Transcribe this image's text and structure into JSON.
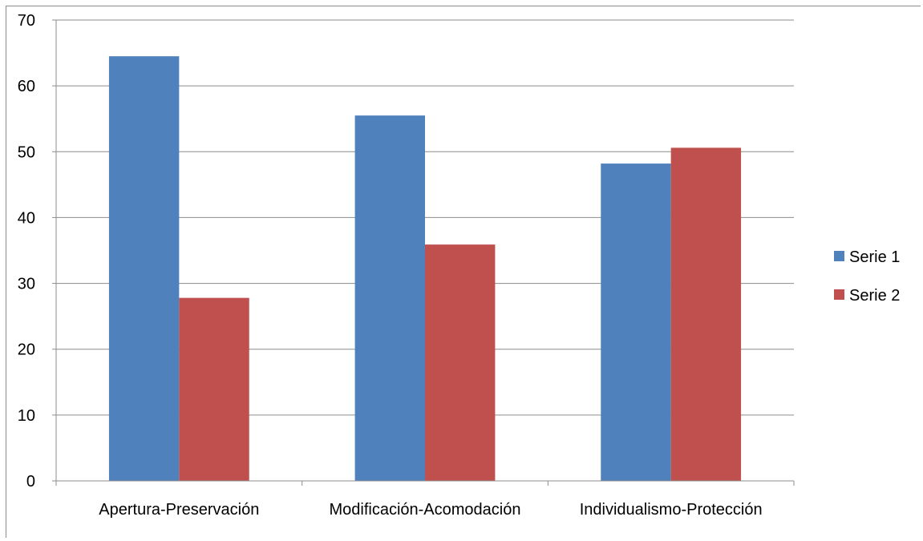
{
  "chart_data": {
    "type": "bar",
    "categories": [
      "Apertura-Preservación",
      "Modificación-Acomodación",
      "Individualismo-Protección"
    ],
    "series": [
      {
        "name": "Serie 1",
        "color": "#4f81bd",
        "values": [
          64.5,
          55.5,
          48.2
        ]
      },
      {
        "name": "Serie 2",
        "color": "#c0504d",
        "values": [
          27.8,
          35.9,
          50.6
        ]
      }
    ],
    "title": "",
    "xlabel": "",
    "ylabel": "",
    "ylim": [
      0,
      70
    ],
    "yticks": [
      0,
      10,
      20,
      30,
      40,
      50,
      60,
      70
    ],
    "grid": true,
    "legend_position": "right",
    "colors": {
      "gridline": "#8c8c8c",
      "axis": "#8c8c8c",
      "text": "#000000"
    }
  }
}
